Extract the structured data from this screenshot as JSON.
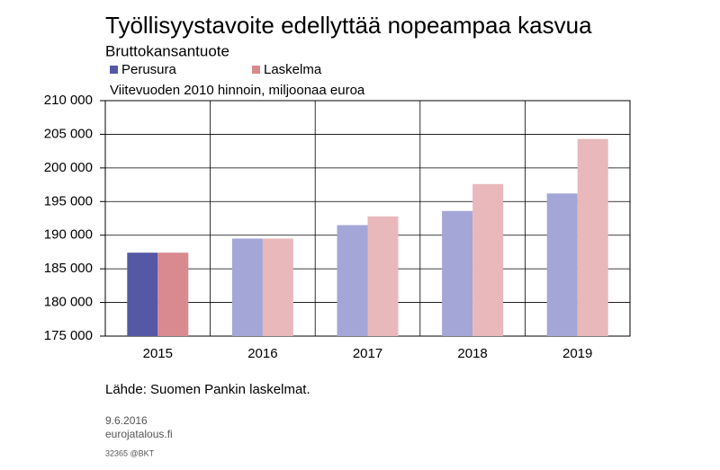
{
  "chart_data": {
    "type": "bar",
    "title": "Työllisyystavoite edellyttää nopeampaa kasvua",
    "subtitle": "Bruttokansantuote",
    "unit_note": "Viitevuoden 2010 hinnoin, miljoonaa euroa",
    "source": "Lähde: Suomen Pankin laskelmat.",
    "date": "9.6.2016",
    "site": "eurojatalous.fi",
    "code": "32365 @BKT",
    "categories": [
      "2015",
      "2016",
      "2017",
      "2018",
      "2019"
    ],
    "series": [
      {
        "name": "Perusura",
        "color": "#5558a5",
        "colors": [
          "#5558a5",
          "#a3a6d6",
          "#a3a6d6",
          "#a3a6d6",
          "#a3a6d6"
        ],
        "values": [
          187400,
          189500,
          191500,
          193600,
          196200
        ]
      },
      {
        "name": "Laskelma",
        "color": "#d98a8e",
        "colors": [
          "#d98a8e",
          "#e8b8bb",
          "#e8b8bb",
          "#e8b8bb",
          "#e8b8bb"
        ],
        "values": [
          187400,
          189500,
          192800,
          197600,
          204300
        ]
      }
    ],
    "ylim": [
      175000,
      210000
    ],
    "yticks": [
      {
        "value": 175000,
        "label": "175 000"
      },
      {
        "value": 180000,
        "label": "180 000"
      },
      {
        "value": 185000,
        "label": "185 000"
      },
      {
        "value": 190000,
        "label": "190 000"
      },
      {
        "value": 195000,
        "label": "195 000"
      },
      {
        "value": 200000,
        "label": "200 000"
      },
      {
        "value": 205000,
        "label": "205 000"
      },
      {
        "value": 210000,
        "label": "210 000"
      }
    ],
    "grid": true
  }
}
